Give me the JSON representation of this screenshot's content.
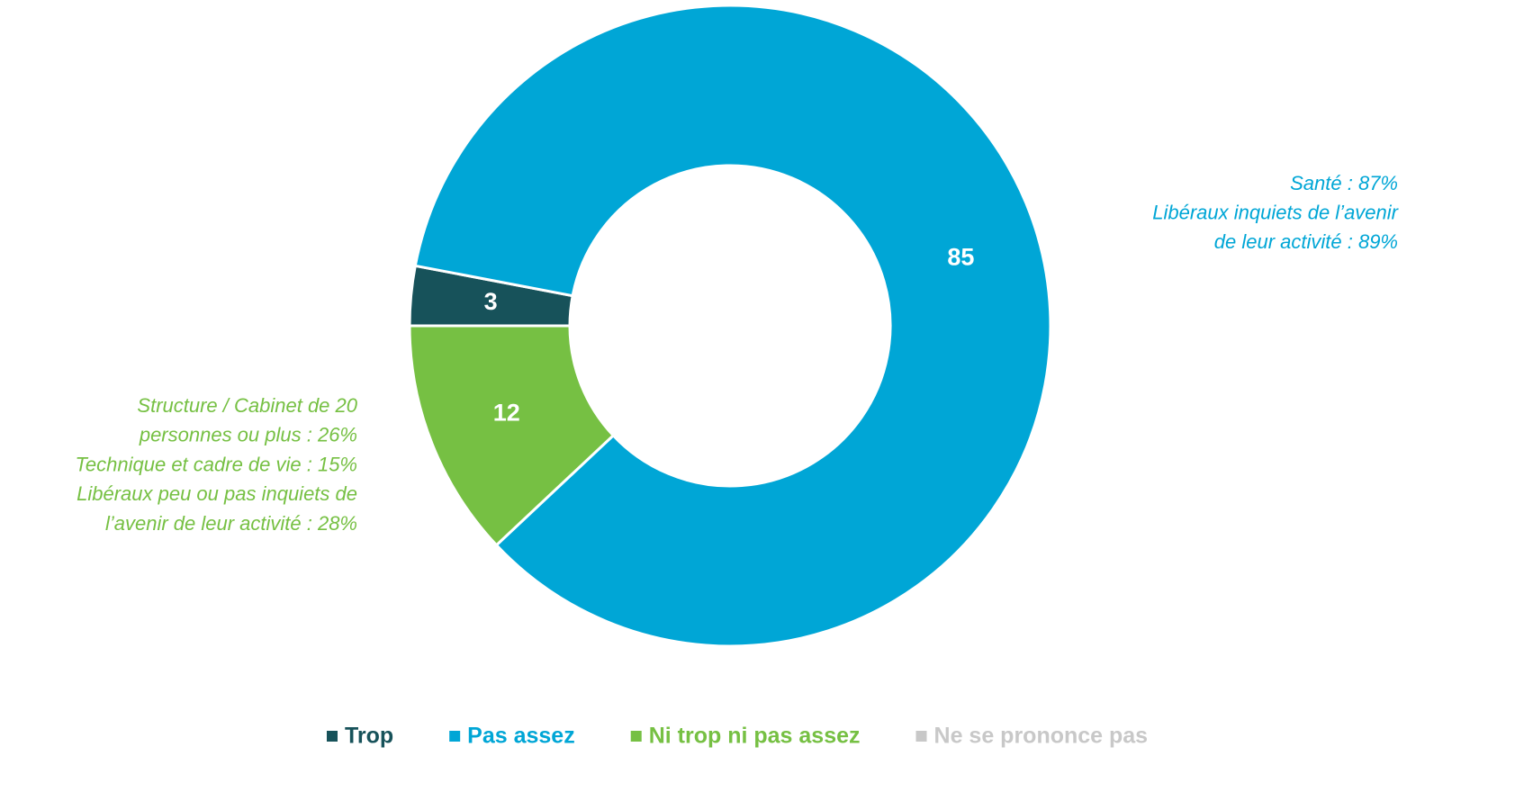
{
  "chart_data": {
    "type": "donut",
    "categories": [
      "Trop",
      "Pas assez",
      "Ni trop ni pas assez",
      "Ne se prononce pas"
    ],
    "values": [
      3,
      85,
      12,
      0
    ],
    "colors": [
      "#17525a",
      "#00a6d6",
      "#76c043",
      "#c8c8c8"
    ],
    "annotations": [
      {
        "lines": [
          "Santé : 87%",
          "Libéraux inquiets de l’avenir",
          "de leur activité : 89%"
        ],
        "color": "#00a6d6"
      },
      {
        "lines": [
          "Structure / Cabinet de 20",
          "personnes ou plus : 26%",
          "Technique et cadre de vie : 15%",
          "Libéraux peu ou pas inquiets de",
          "l’avenir de leur activité : 28%"
        ],
        "color": "#76c043"
      }
    ],
    "legend": "bottom"
  }
}
